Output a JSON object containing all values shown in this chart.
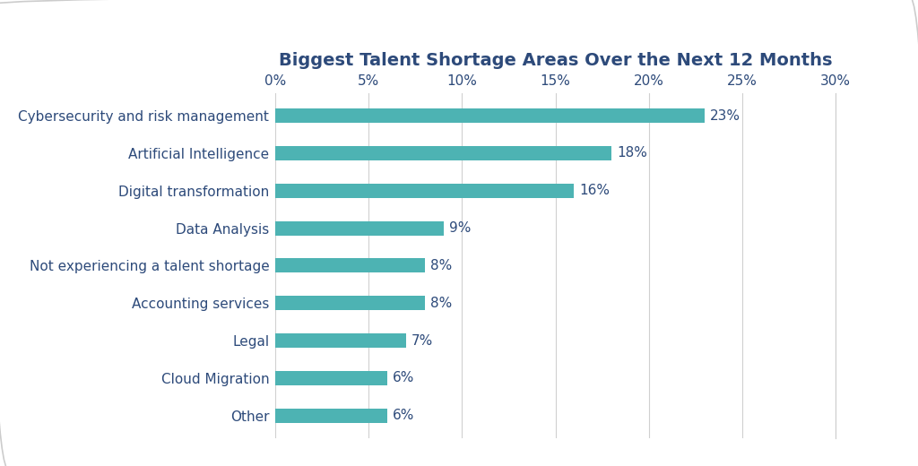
{
  "title": "Biggest Talent Shortage Areas Over the Next 12 Months",
  "categories": [
    "Other",
    "Cloud Migration",
    "Legal",
    "Accounting services",
    "Not experiencing a talent shortage",
    "Data Analysis",
    "Digital transformation",
    "Artificial Intelligence",
    "Cybersecurity and risk management"
  ],
  "values": [
    6,
    6,
    7,
    8,
    8,
    9,
    16,
    18,
    23
  ],
  "bar_color": "#4db3b3",
  "label_color": "#2d4a7a",
  "title_color": "#2d4a7a",
  "tick_color": "#2d4a7a",
  "background_color": "#ffffff",
  "xlim": [
    0,
    30
  ],
  "xticks": [
    0,
    5,
    10,
    15,
    20,
    25,
    30
  ],
  "xtick_labels": [
    "0%",
    "5%",
    "10%",
    "15%",
    "20%",
    "25%",
    "30%"
  ],
  "title_fontsize": 14,
  "label_fontsize": 11,
  "tick_fontsize": 11,
  "value_fontsize": 11,
  "bar_height": 0.38
}
